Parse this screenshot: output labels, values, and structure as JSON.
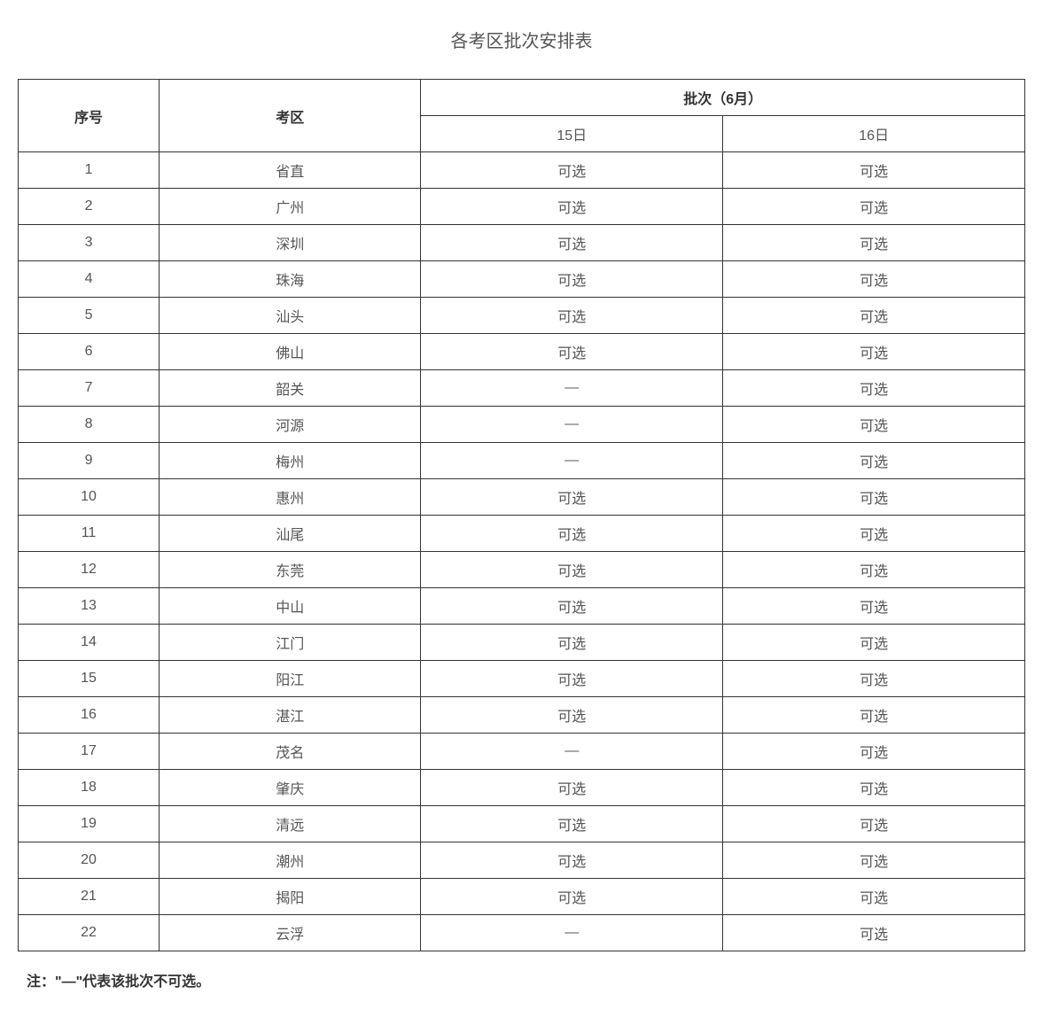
{
  "title": "各考区批次安排表",
  "table": {
    "headers": {
      "seq": "序号",
      "area": "考区",
      "batch_group": "批次（6月）",
      "batch_day1": "15日",
      "batch_day2": "16日"
    },
    "rows": [
      {
        "seq": "1",
        "area": "省直",
        "day1": "可选",
        "day2": "可选"
      },
      {
        "seq": "2",
        "area": "广州",
        "day1": "可选",
        "day2": "可选"
      },
      {
        "seq": "3",
        "area": "深圳",
        "day1": "可选",
        "day2": "可选"
      },
      {
        "seq": "4",
        "area": "珠海",
        "day1": "可选",
        "day2": "可选"
      },
      {
        "seq": "5",
        "area": "汕头",
        "day1": "可选",
        "day2": "可选"
      },
      {
        "seq": "6",
        "area": "佛山",
        "day1": "可选",
        "day2": "可选"
      },
      {
        "seq": "7",
        "area": "韶关",
        "day1": "—",
        "day2": "可选"
      },
      {
        "seq": "8",
        "area": "河源",
        "day1": "—",
        "day2": "可选"
      },
      {
        "seq": "9",
        "area": "梅州",
        "day1": "—",
        "day2": "可选"
      },
      {
        "seq": "10",
        "area": "惠州",
        "day1": "可选",
        "day2": "可选"
      },
      {
        "seq": "11",
        "area": "汕尾",
        "day1": "可选",
        "day2": "可选"
      },
      {
        "seq": "12",
        "area": "东莞",
        "day1": "可选",
        "day2": "可选"
      },
      {
        "seq": "13",
        "area": "中山",
        "day1": "可选",
        "day2": "可选"
      },
      {
        "seq": "14",
        "area": "江门",
        "day1": "可选",
        "day2": "可选"
      },
      {
        "seq": "15",
        "area": "阳江",
        "day1": "可选",
        "day2": "可选"
      },
      {
        "seq": "16",
        "area": "湛江",
        "day1": "可选",
        "day2": "可选"
      },
      {
        "seq": "17",
        "area": "茂名",
        "day1": "—",
        "day2": "可选"
      },
      {
        "seq": "18",
        "area": "肇庆",
        "day1": "可选",
        "day2": "可选"
      },
      {
        "seq": "19",
        "area": "清远",
        "day1": "可选",
        "day2": "可选"
      },
      {
        "seq": "20",
        "area": "潮州",
        "day1": "可选",
        "day2": "可选"
      },
      {
        "seq": "21",
        "area": "揭阳",
        "day1": "可选",
        "day2": "可选"
      },
      {
        "seq": "22",
        "area": "云浮",
        "day1": "—",
        "day2": "可选"
      }
    ]
  },
  "footnote": "注：\"—\"代表该批次不可选。",
  "styles": {
    "font_family": "Microsoft YaHei",
    "title_fontsize": 20,
    "cell_fontsize": 16,
    "border_color": "#333333",
    "text_color": "#555555",
    "header_text_color": "#333333",
    "background_color": "#ffffff"
  }
}
